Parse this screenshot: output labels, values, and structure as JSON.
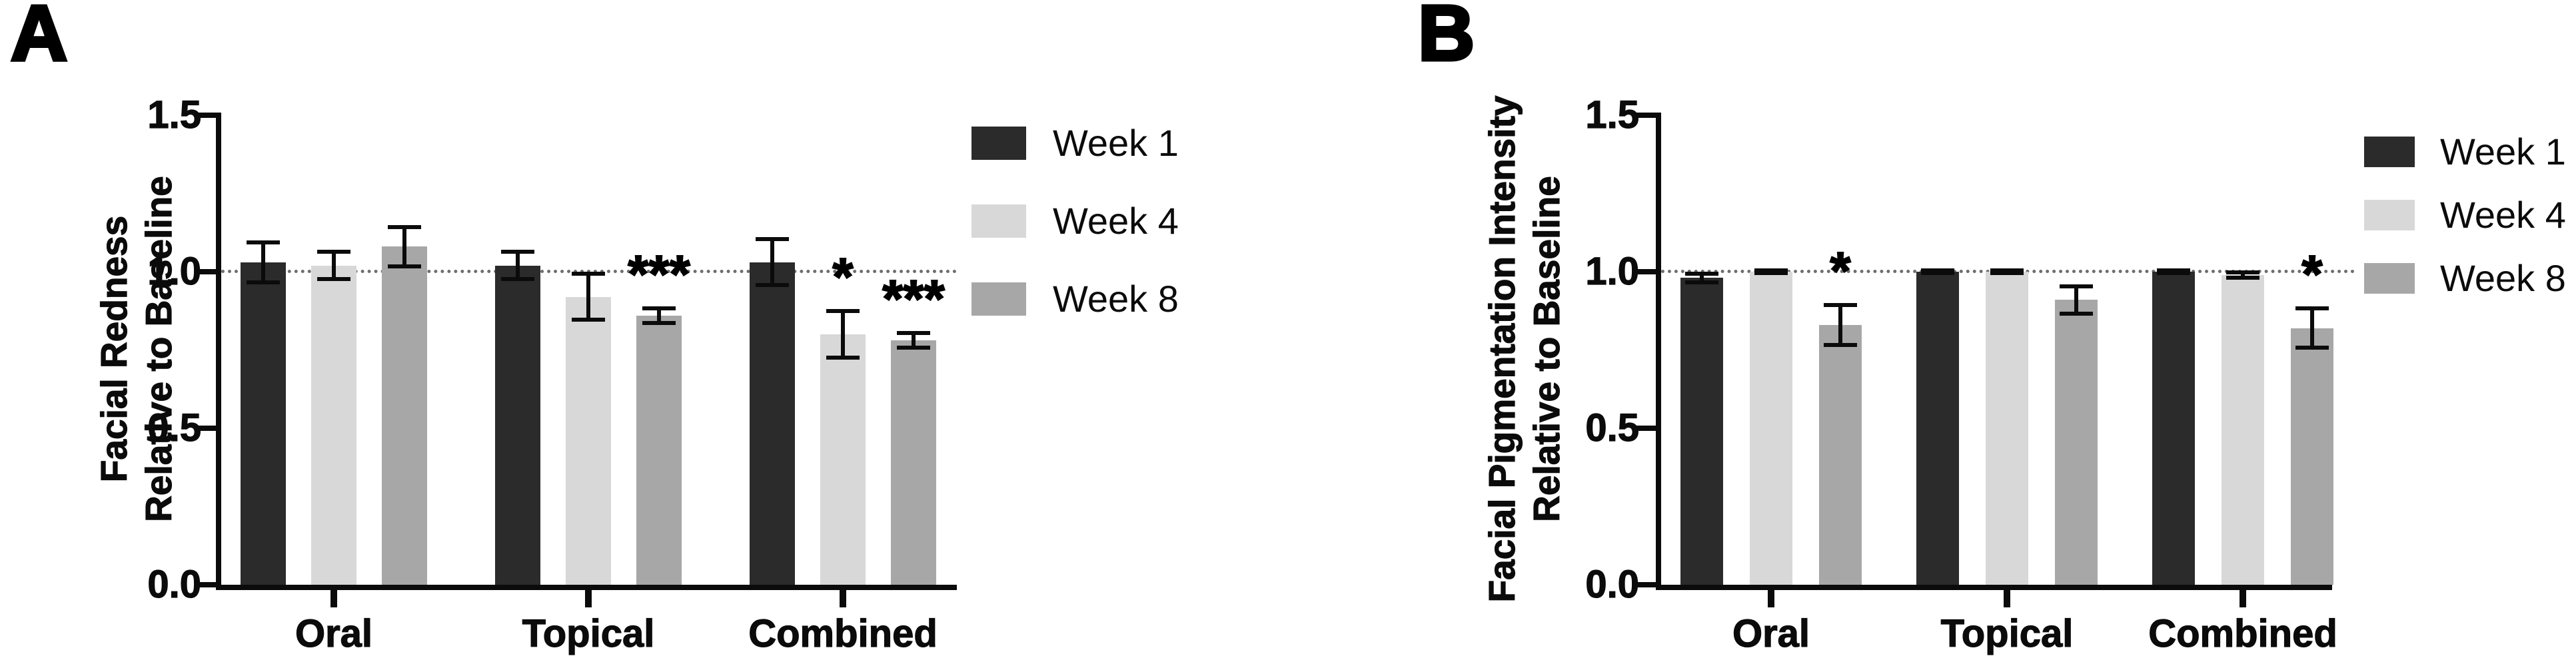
{
  "figure": {
    "background": "#ffffff",
    "axis_color": "#0b0b0b",
    "reference_line_style": "dotted"
  },
  "chart_data": [
    {
      "type": "bar",
      "panel_label": "A",
      "title": "",
      "ylabel": "Facial Redness Relative to Baseline",
      "ylabel_lines": [
        "Facial Redness",
        "Relative to Baseline"
      ],
      "xlabel": "",
      "categories": [
        "Oral",
        "Topical",
        "Combined"
      ],
      "yticks": [
        "1.5",
        "1.0",
        "0.5",
        "0.0"
      ],
      "ylim": [
        0,
        1.5
      ],
      "reference_line": 1.0,
      "grid": false,
      "legend_position": "right",
      "series": [
        {
          "name": "Week 1",
          "color": "#2b2b2b",
          "values": [
            1.03,
            1.02,
            1.03
          ],
          "errors": [
            0.07,
            0.05,
            0.08
          ],
          "sig": [
            "",
            "",
            ""
          ]
        },
        {
          "name": "Week 4",
          "color": "#d8d8d8",
          "values": [
            1.02,
            0.92,
            0.8
          ],
          "errors": [
            0.05,
            0.08,
            0.08
          ],
          "sig": [
            "",
            "",
            "*"
          ]
        },
        {
          "name": "Week 8",
          "color": "#a7a7a7",
          "values": [
            1.08,
            0.86,
            0.78
          ],
          "errors": [
            0.07,
            0.03,
            0.03
          ],
          "sig": [
            "",
            "***",
            "***"
          ]
        }
      ]
    },
    {
      "type": "bar",
      "panel_label": "B",
      "title": "",
      "ylabel": "Facial Pigmentation Intensity Relative to Baseline",
      "ylabel_lines": [
        "Facial Pigmentation Intensity",
        "Relative to Baseline"
      ],
      "xlabel": "",
      "categories": [
        "Oral",
        "Topical",
        "Combined"
      ],
      "yticks": [
        "1.5",
        "1.0",
        "0.5",
        "0.0"
      ],
      "ylim": [
        0,
        1.5
      ],
      "reference_line": 1.0,
      "grid": false,
      "legend_position": "right",
      "series": [
        {
          "name": "Week 1",
          "color": "#2b2b2b",
          "values": [
            0.98,
            1.0,
            1.0
          ],
          "errors": [
            0.02,
            0.01,
            0.01
          ],
          "sig": [
            "",
            "",
            ""
          ]
        },
        {
          "name": "Week 4",
          "color": "#d8d8d8",
          "values": [
            1.0,
            1.0,
            0.99
          ],
          "errors": [
            0.01,
            0.01,
            0.015
          ],
          "sig": [
            "",
            "",
            ""
          ]
        },
        {
          "name": "Week 8",
          "color": "#a7a7a7",
          "values": [
            0.83,
            0.91,
            0.82
          ],
          "errors": [
            0.07,
            0.05,
            0.07
          ],
          "sig": [
            "*",
            "",
            "*"
          ]
        }
      ]
    }
  ]
}
